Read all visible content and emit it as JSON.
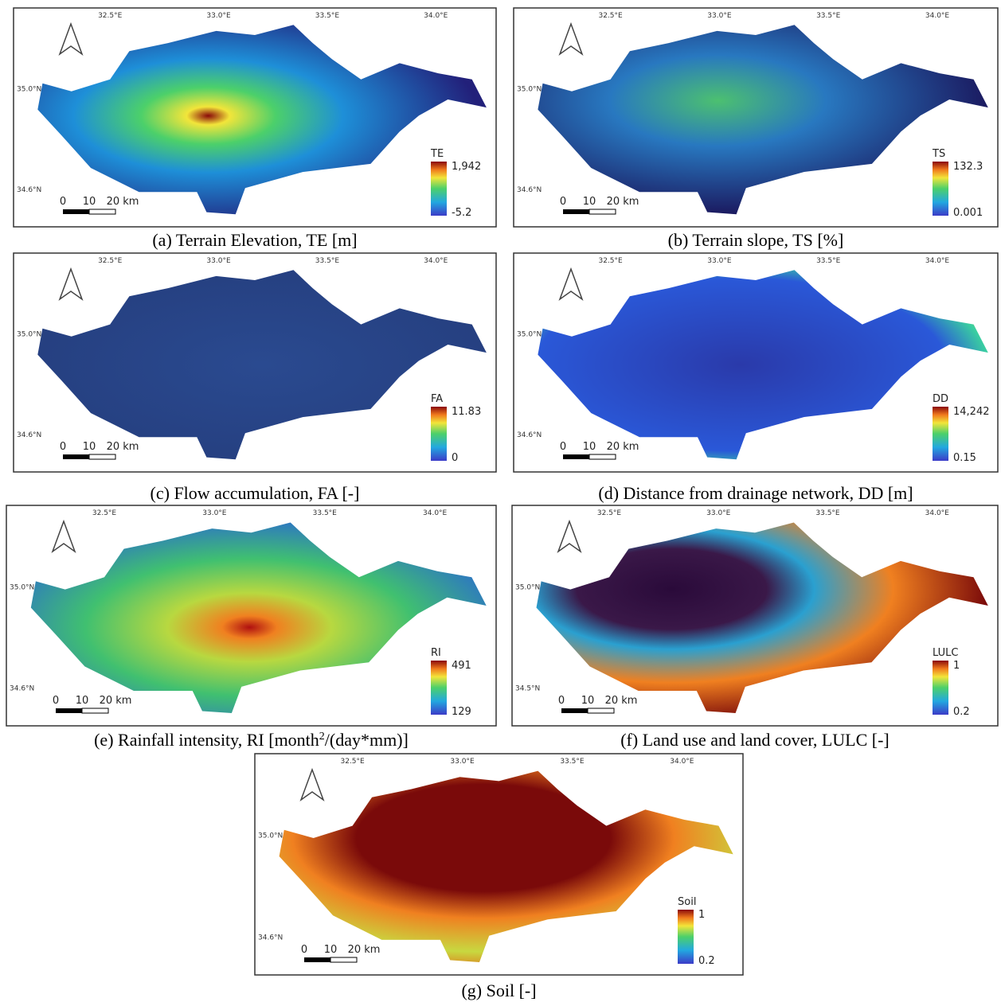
{
  "panels": [
    {
      "caption": "(a)  Terrain Elevation, TE [m]",
      "legend": {
        "title": "TE",
        "max": "1,942",
        "min": "-5.2"
      },
      "lon_labels": [
        "32.5°E",
        "33.0°E",
        "33.5°E",
        "34.0°E"
      ],
      "lat_labels": [
        "35.0°N",
        "34.6°N"
      ],
      "scale_labels": [
        "0",
        "10",
        "20 km"
      ]
    },
    {
      "caption": "(b)  Terrain slope, TS [%]",
      "legend": {
        "title": "TS",
        "max": "132.3",
        "min": "0.001"
      },
      "lon_labels": [
        "32.5°E",
        "33.0°E",
        "33.5°E",
        "34.0°E"
      ],
      "lat_labels": [
        "35.0°N",
        "34.6°N"
      ],
      "scale_labels": [
        "0",
        "10",
        "20 km"
      ]
    },
    {
      "caption": "(c)  Flow accumulation, FA [-]",
      "legend": {
        "title": "FA",
        "max": "11.83",
        "min": "0"
      },
      "lon_labels": [
        "32.5°E",
        "33.0°E",
        "33.5°E",
        "34.0°E"
      ],
      "lat_labels": [
        "35.0°N",
        "34.6°N"
      ],
      "scale_labels": [
        "0",
        "10",
        "20 km"
      ]
    },
    {
      "caption": "(d) Distance from drainage network, DD [m]",
      "legend": {
        "title": "DD",
        "max": "14,242",
        "min": "0.15"
      },
      "lon_labels": [
        "32.5°E",
        "33.0°E",
        "33.5°E",
        "34.0°E"
      ],
      "lat_labels": [
        "35.0°N",
        "34.6°N"
      ],
      "scale_labels": [
        "0",
        "10",
        "20 km"
      ]
    },
    {
      "caption": {
        "text": "(e) Rainfall intensity, RI [month",
        "sup": "2",
        "rest": "/(day*mm)]"
      },
      "legend": {
        "title": "RI",
        "max": "491",
        "min": "129"
      },
      "lon_labels": [
        "32.5°E",
        "33.0°E",
        "33.5°E",
        "34.0°E"
      ],
      "lat_labels": [
        "35.0°N",
        "34.6°N"
      ],
      "scale_labels": [
        "0",
        "10",
        "20 km"
      ]
    },
    {
      "caption": "(f) Land use and land cover, LULC [-]",
      "legend": {
        "title": "LULC",
        "max": "1",
        "min": "0.2"
      },
      "lon_labels": [
        "32.5°E",
        "33.0°E",
        "33.5°E",
        "34.0°E"
      ],
      "lat_labels": [
        "35.0°N",
        "34.5°N"
      ],
      "scale_labels": [
        "0",
        "10",
        "20 km"
      ]
    },
    {
      "caption": "(g) Soil [-]",
      "legend": {
        "title": "Soil",
        "max": "1",
        "min": "0.2"
      },
      "lon_labels": [
        "32.5°E",
        "33.0°E",
        "33.5°E",
        "34.0°E"
      ],
      "lat_labels": [
        "35.0°N",
        "34.6°N"
      ],
      "scale_labels": [
        "0",
        "10",
        "20 km"
      ]
    }
  ]
}
